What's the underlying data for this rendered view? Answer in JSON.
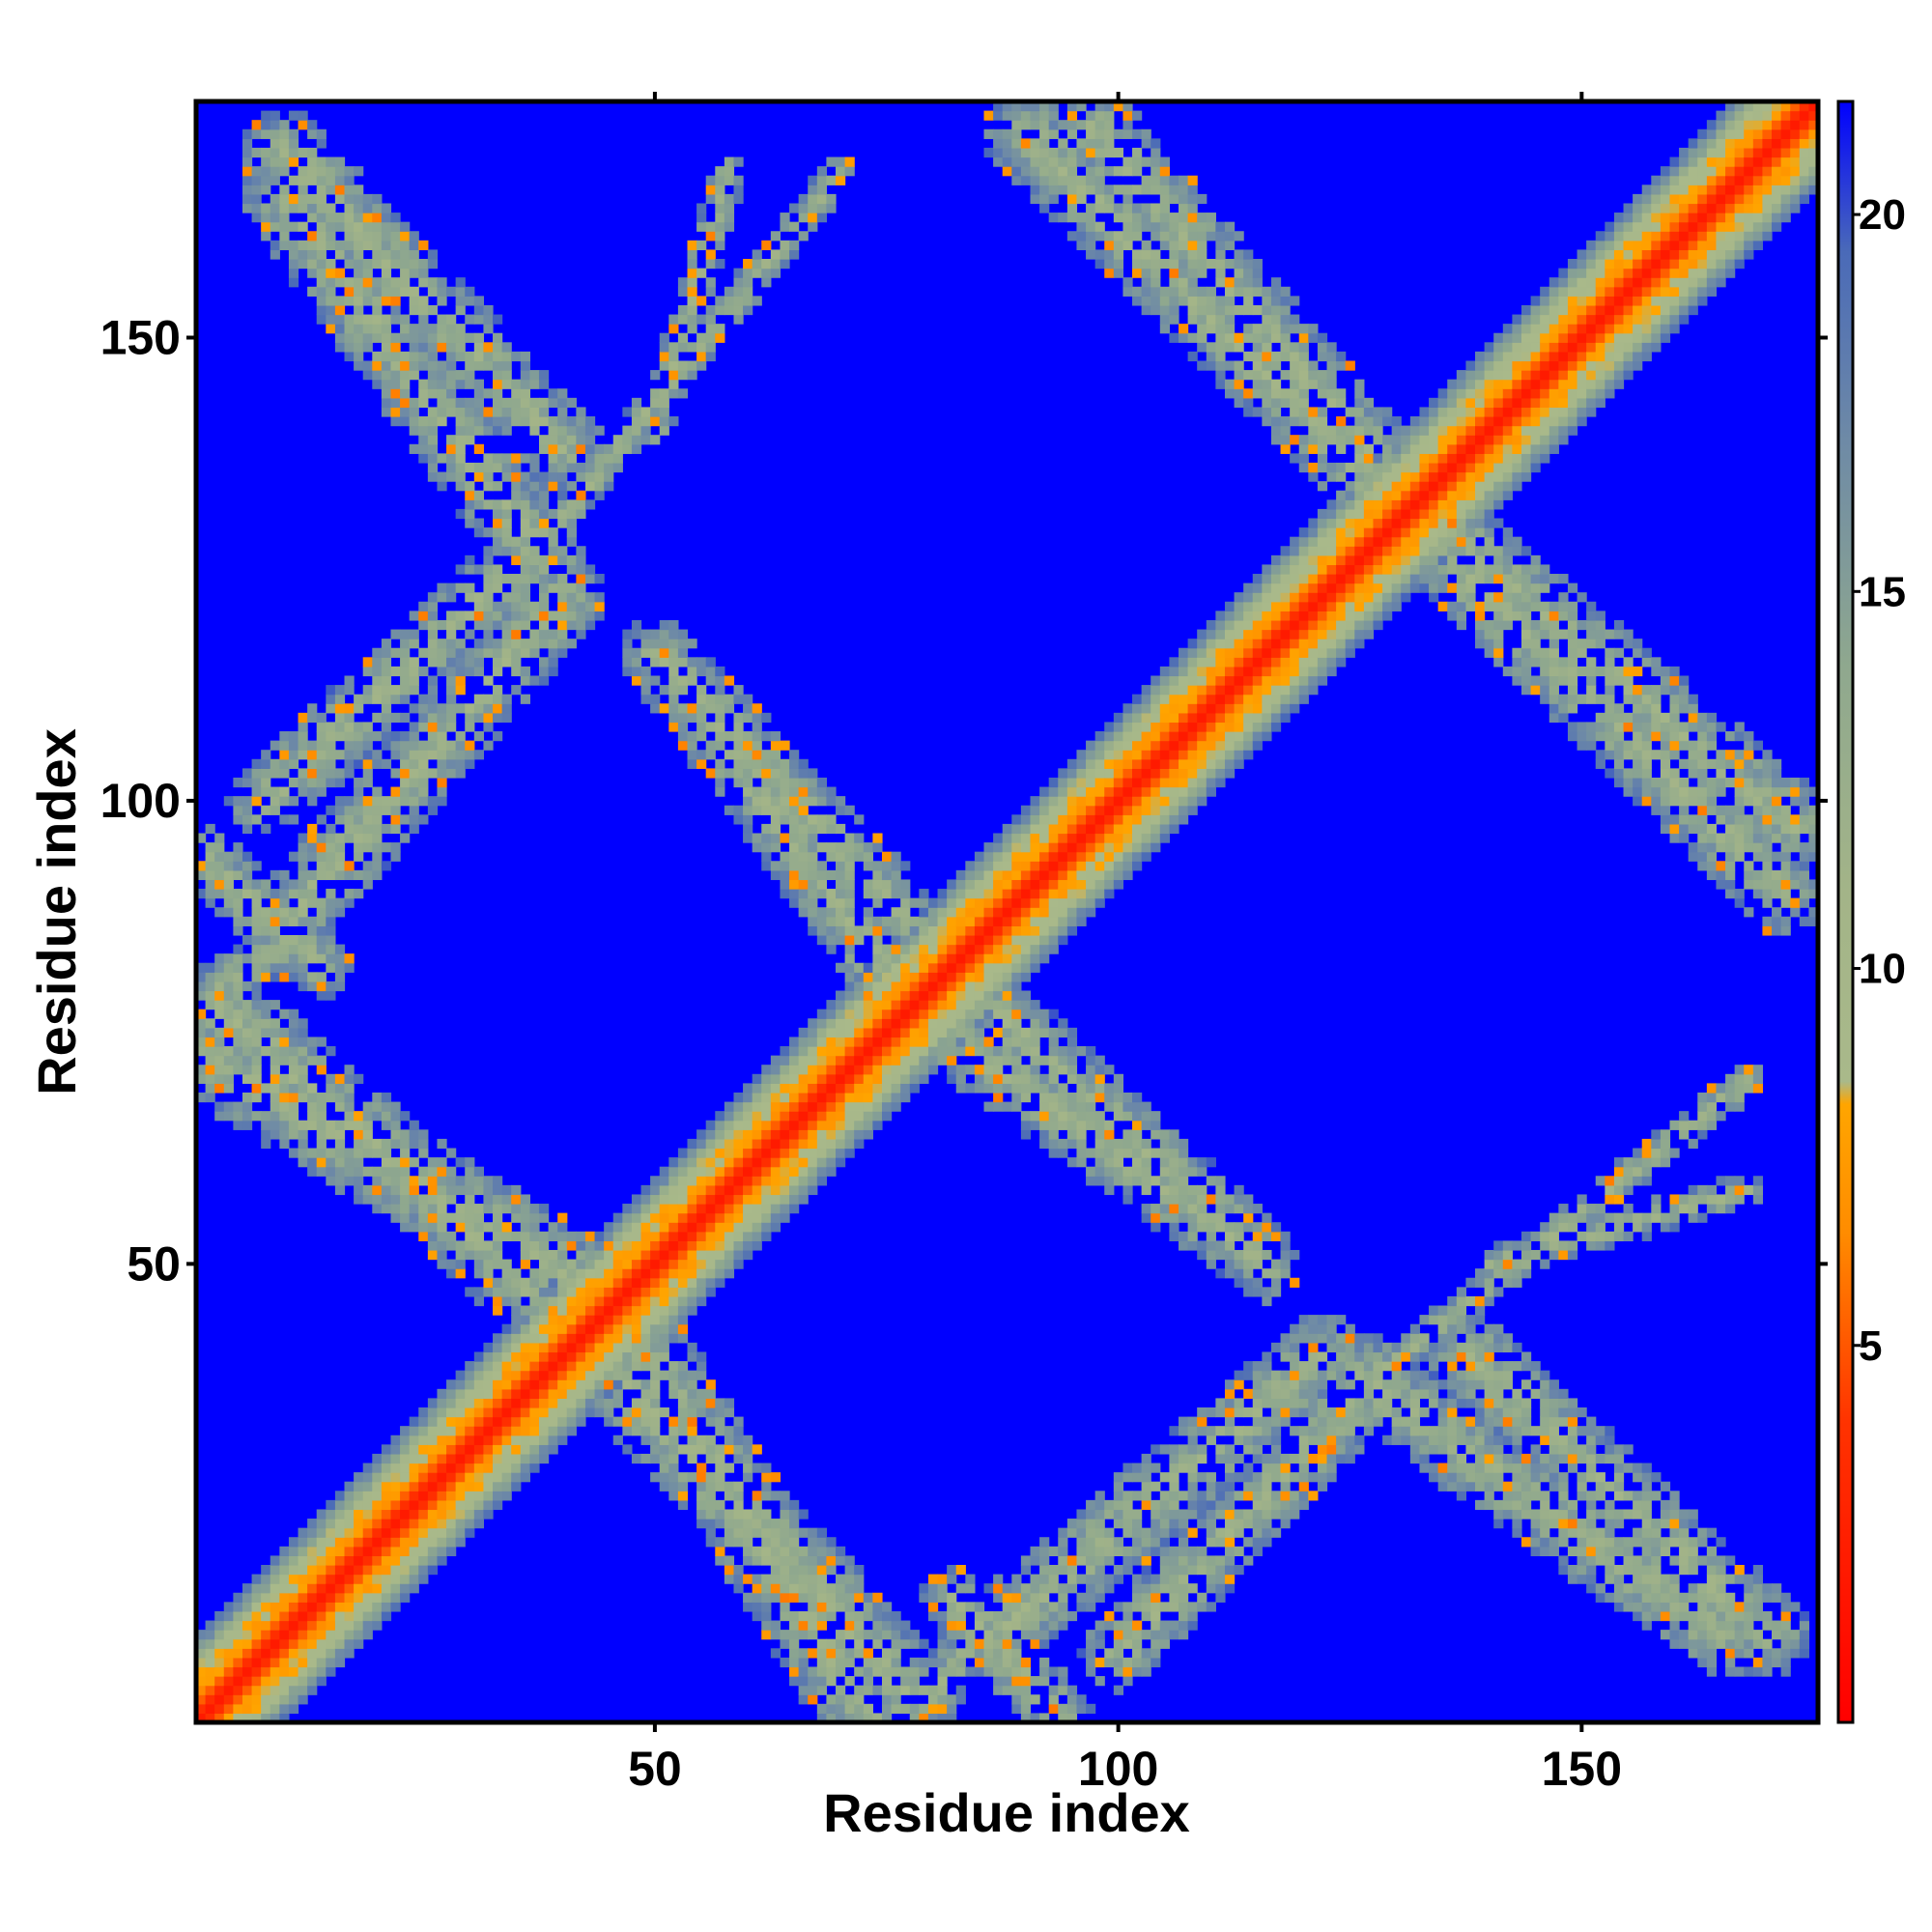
{
  "chart_data": {
    "type": "heatmap",
    "title": "",
    "xlabel": "Residue index",
    "ylabel": "Residue index",
    "n_residues": 175,
    "xlim": [
      0.5,
      175.5
    ],
    "ylim": [
      0.5,
      175.5
    ],
    "x_ticks": [
      50,
      100,
      150
    ],
    "y_ticks": [
      50,
      100,
      150
    ],
    "grid": false,
    "colorbar": {
      "position": "right",
      "range": [
        0,
        21.5
      ],
      "ticks": [
        5,
        10,
        15,
        20
      ],
      "stops": [
        {
          "value": 0,
          "color": "#ff0000"
        },
        {
          "value": 4,
          "color": "#ff3300"
        },
        {
          "value": 6.5,
          "color": "#ff8c00"
        },
        {
          "value": 8.2,
          "color": "#ffa500"
        },
        {
          "value": 8.5,
          "color": "#a9b98a"
        },
        {
          "value": 11,
          "color": "#a3b488"
        },
        {
          "value": 14,
          "color": "#8fa88e"
        },
        {
          "value": 17,
          "color": "#6e8aa6"
        },
        {
          "value": 19.5,
          "color": "#4a6ab8"
        },
        {
          "value": 21.5,
          "color": "#0000ff"
        }
      ]
    },
    "value_cap": 21.5,
    "structure": {
      "diagonal": {
        "core_halfwidth": 2,
        "shoulder_halfwidth": 6,
        "halo_halfwidth": 9
      },
      "bands": [
        {
          "from": [
            1,
            94
          ],
          "to": [
            14,
            82
          ],
          "halfwidth": 3.5
        },
        {
          "from": [
            1,
            73
          ],
          "to": [
            42,
            48
          ],
          "halfwidth": 5
        },
        {
          "from": [
            40,
            45
          ],
          "to": [
            78,
            3
          ],
          "halfwidth": 5
        },
        {
          "from": [
            80,
            3
          ],
          "to": [
            86,
            12
          ],
          "halfwidth": 2.5
        },
        {
          "from": [
            88,
            11
          ],
          "to": [
            122,
            40
          ],
          "halfwidth": 4.5
        },
        {
          "from": [
            126,
            38
          ],
          "to": [
            165,
            10
          ],
          "halfwidth": 4.5
        },
        {
          "from": [
            128,
            38
          ],
          "to": [
            168,
            70
          ],
          "halfwidth": 1.8
        },
        {
          "from": [
            80,
            76
          ],
          "to": [
            115,
            51
          ],
          "halfwidth": 4
        },
        {
          "from": [
            80,
            84
          ],
          "to": [
            50,
            116
          ],
          "halfwidth": 4
        },
        {
          "from": [
            90,
            172
          ],
          "to": [
            130,
            132
          ],
          "halfwidth": 4.5
        },
        {
          "from": [
            132,
            132
          ],
          "to": [
            173,
            97
          ],
          "halfwidth": 4.5
        },
        {
          "from": [
            10,
            170
          ],
          "to": [
            40,
            138
          ],
          "halfwidth": 4.5
        },
        {
          "from": [
            8,
            100
          ],
          "to": [
            38,
            128
          ],
          "halfwidth": 4
        },
        {
          "from": [
            58,
            168
          ],
          "to": [
            50,
            140
          ],
          "halfwidth": 1.8
        }
      ]
    }
  }
}
